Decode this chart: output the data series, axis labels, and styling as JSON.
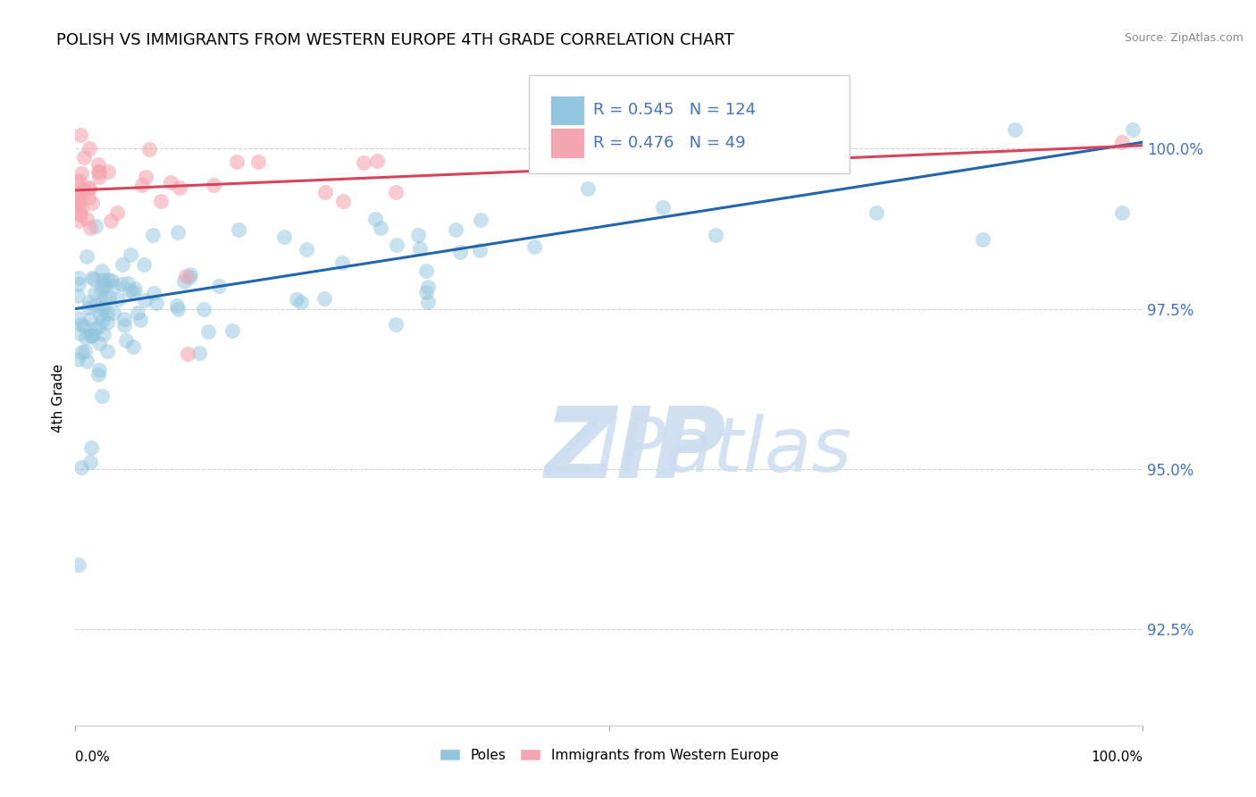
{
  "title": "POLISH VS IMMIGRANTS FROM WESTERN EUROPE 4TH GRADE CORRELATION CHART",
  "source": "Source: ZipAtlas.com",
  "ylabel": "4th Grade",
  "yticks": [
    92.5,
    95.0,
    97.5,
    100.0
  ],
  "ytick_labels": [
    "92.5%",
    "95.0%",
    "97.5%",
    "100.0%"
  ],
  "xlim": [
    0.0,
    100.0
  ],
  "ylim": [
    91.0,
    101.2
  ],
  "blue_R": 0.545,
  "blue_N": 124,
  "pink_R": 0.476,
  "pink_N": 49,
  "blue_color": "#92c5de",
  "pink_color": "#f4a6b0",
  "blue_line_color": "#2166ac",
  "pink_line_color": "#d6445a",
  "legend_blue_label": "Poles",
  "legend_pink_label": "Immigrants from Western Europe",
  "blue_line_x0": 0,
  "blue_line_y0": 97.5,
  "blue_line_x1": 100,
  "blue_line_y1": 100.1,
  "pink_line_x0": 0,
  "pink_line_y0": 99.35,
  "pink_line_x1": 100,
  "pink_line_y1": 100.05
}
